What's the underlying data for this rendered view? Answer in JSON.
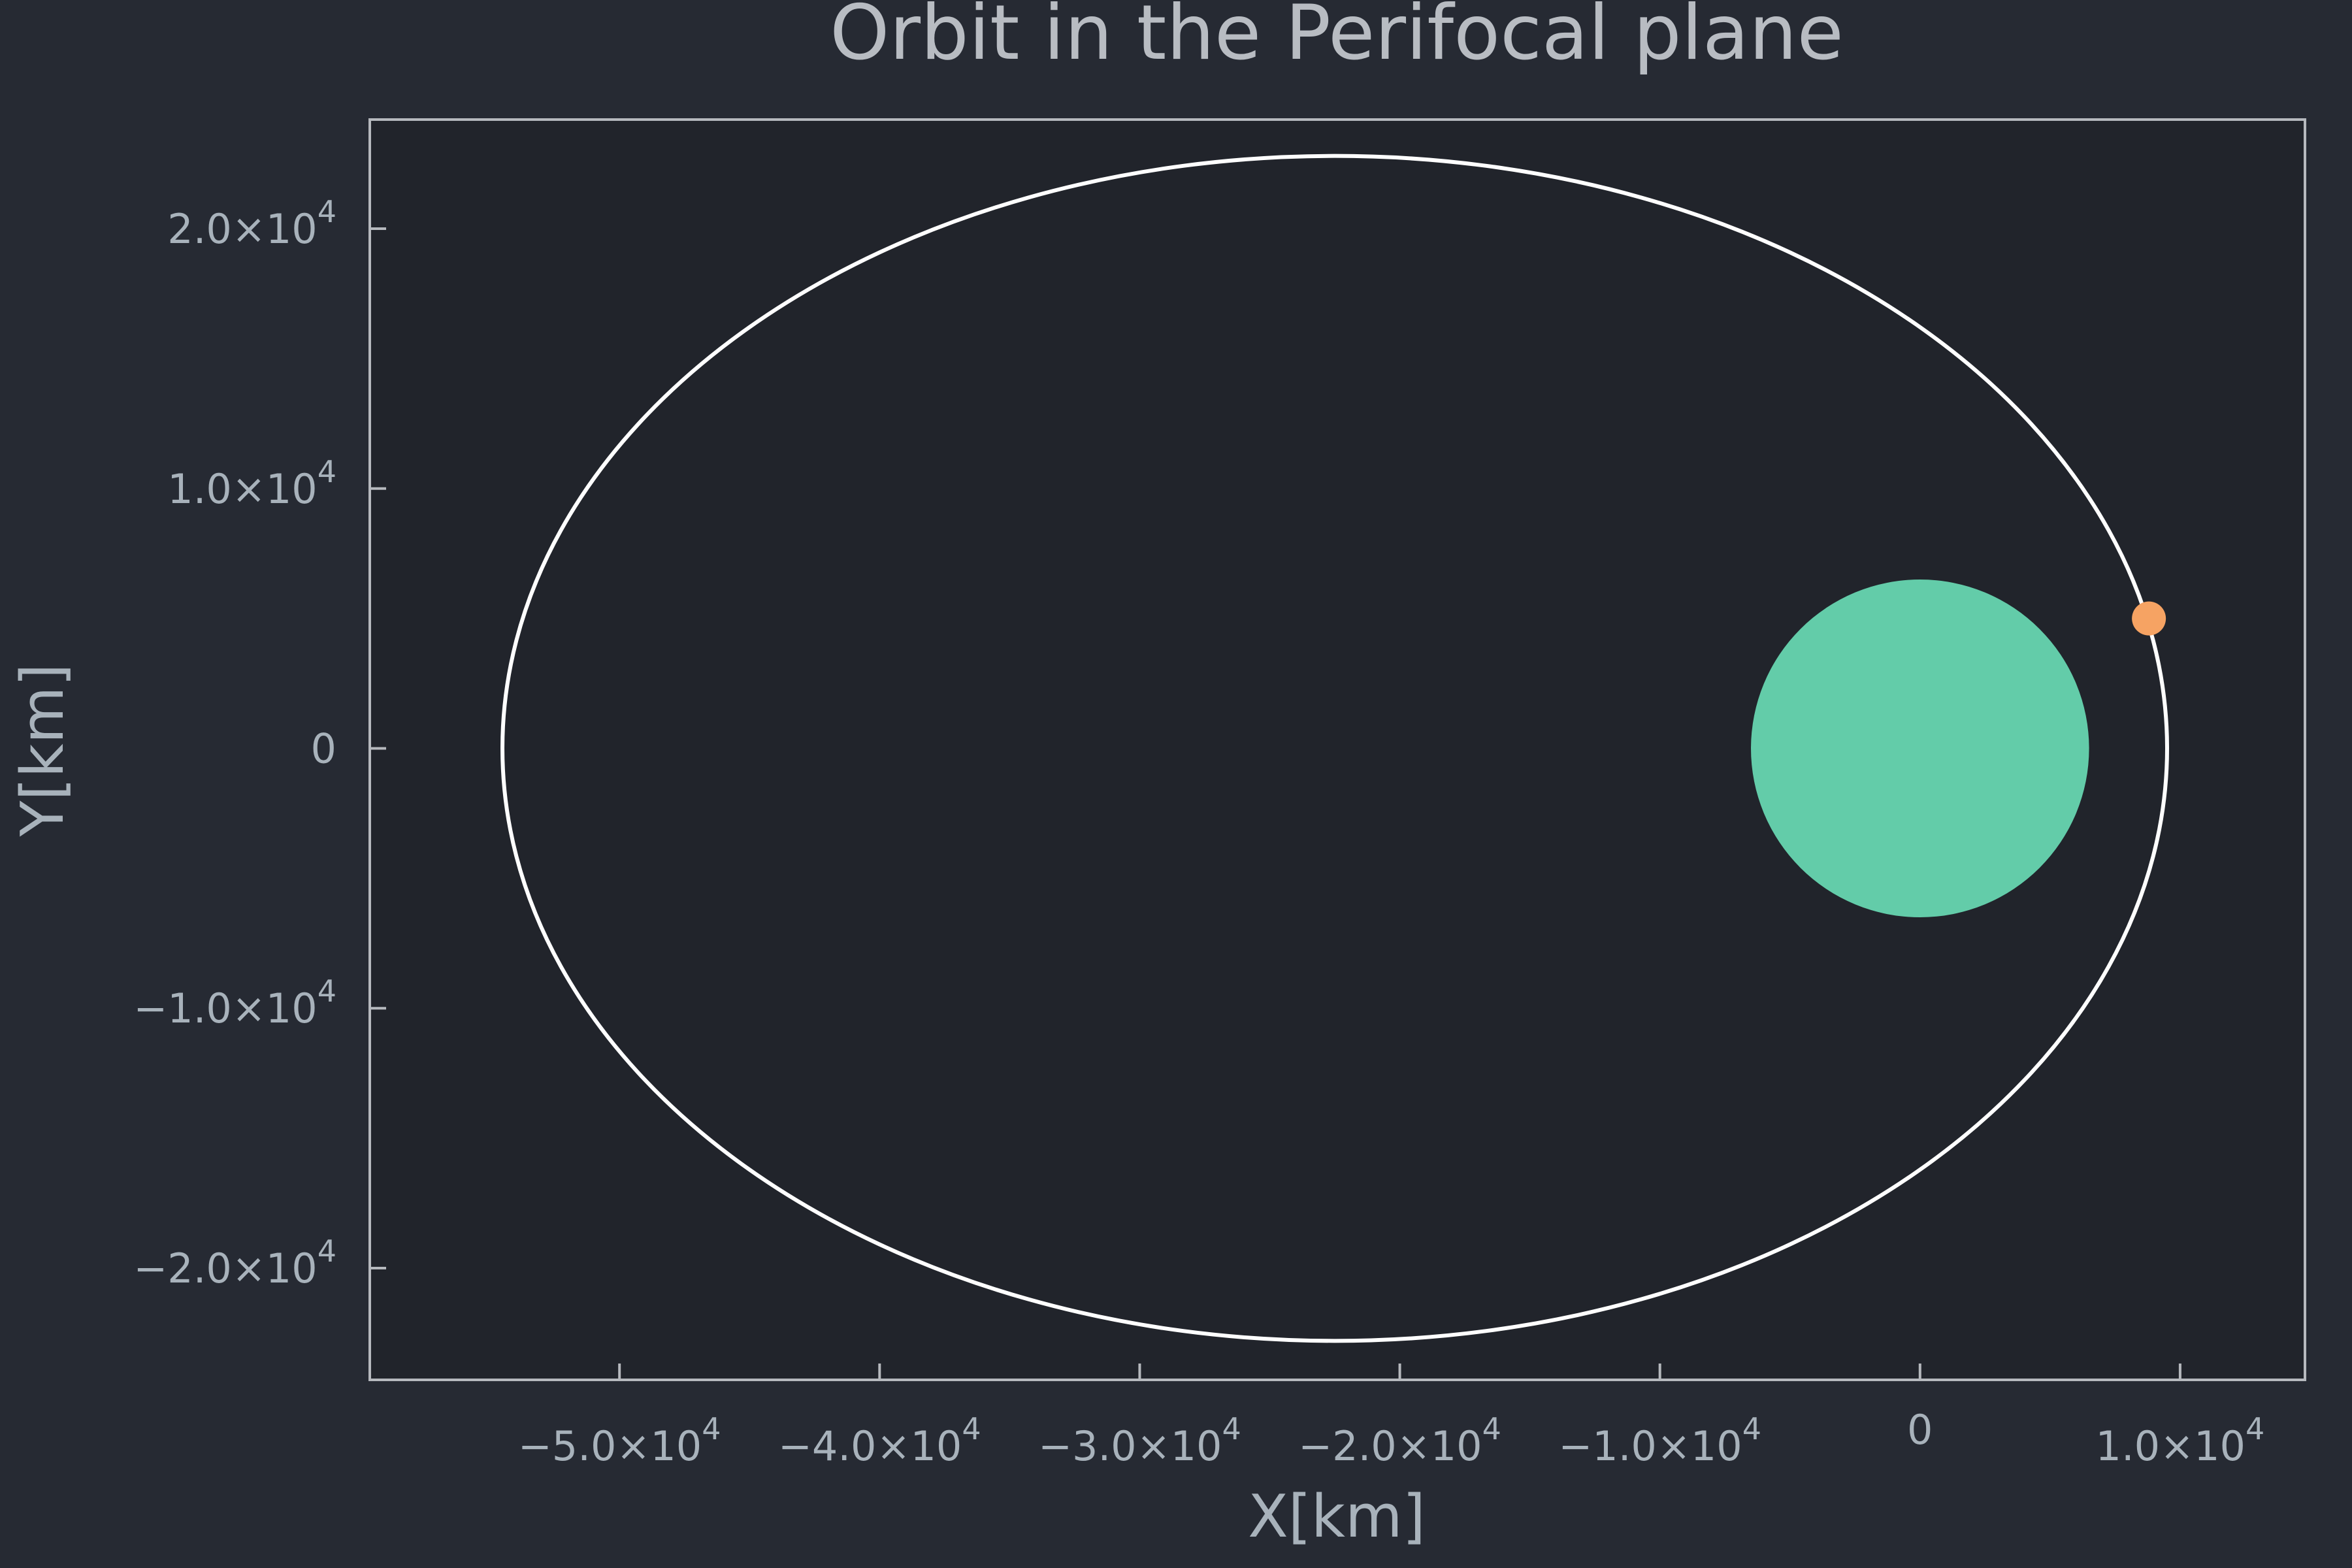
{
  "chart_data": {
    "type": "scatter",
    "title": "Orbit in the Perifocal plane",
    "xlabel": "X[km]",
    "ylabel": "Y[km]",
    "xlim": [
      -59600,
      14800
    ],
    "ylim": [
      -24300,
      24200
    ],
    "grid": false,
    "legend": "none",
    "x_ticks": [
      {
        "value": -50000,
        "label": "−5.0×10",
        "exp": "4"
      },
      {
        "value": -40000,
        "label": "−4.0×10",
        "exp": "4"
      },
      {
        "value": -30000,
        "label": "−3.0×10",
        "exp": "4"
      },
      {
        "value": -20000,
        "label": "−2.0×10",
        "exp": "4"
      },
      {
        "value": -10000,
        "label": "−1.0×10",
        "exp": "4"
      },
      {
        "value": 0,
        "label": "0",
        "exp": ""
      },
      {
        "value": 10000,
        "label": "1.0×10",
        "exp": "4"
      }
    ],
    "y_ticks": [
      {
        "value": 20000,
        "label": "2.0×10",
        "exp": "4"
      },
      {
        "value": 10000,
        "label": "1.0×10",
        "exp": "4"
      },
      {
        "value": 0,
        "label": "0",
        "exp": ""
      },
      {
        "value": -10000,
        "label": "−1.0×10",
        "exp": "4"
      },
      {
        "value": -20000,
        "label": "−2.0×10",
        "exp": "4"
      }
    ],
    "orbit": {
      "center_x": -22500,
      "center_y": 0,
      "semi_major": 32000,
      "semi_minor": 22800,
      "periapsis_x": 9500,
      "apoapsis_x": -54500
    },
    "body": {
      "center_x": 0,
      "center_y": 0,
      "radius": 6500
    },
    "satellite": {
      "x": 8800,
      "y": 5000
    }
  },
  "colors": {
    "background": "#262a33",
    "plot_background": "#21242b",
    "axes": "#b6b9be",
    "text": "#a8b2bb",
    "title": "#b8bcc2",
    "orbit": "#ffffff",
    "body": "#63cca9",
    "satellite": "#f6a363"
  }
}
